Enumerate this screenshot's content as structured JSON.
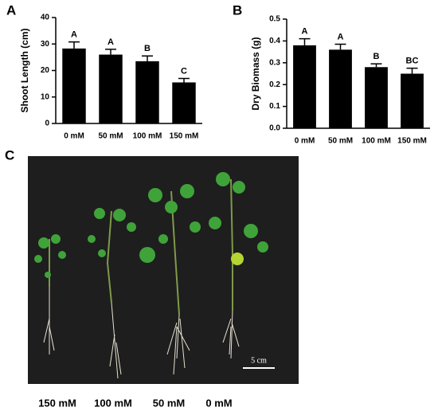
{
  "chart_data": [
    {
      "type": "bar",
      "panel": "A",
      "ylabel": "Shoot Length (cm)",
      "categories": [
        "0 mM",
        "50 mM",
        "100 mM",
        "150 mM"
      ],
      "values": [
        28.3,
        26,
        23.5,
        15.5
      ],
      "errors": [
        2.5,
        2,
        2,
        1.5
      ],
      "letters": [
        "A",
        "A",
        "B",
        "C"
      ],
      "color": "#000000",
      "ylim": [
        0,
        40
      ],
      "yticks": [
        0,
        10,
        20,
        30,
        40
      ]
    },
    {
      "type": "bar",
      "panel": "B",
      "ylabel": "Dry Biomass (g)",
      "categories": [
        "0 mM",
        "50 mM",
        "100 mM",
        "150 mM"
      ],
      "values": [
        0.38,
        0.36,
        0.28,
        0.25
      ],
      "errors": [
        0.03,
        0.025,
        0.015,
        0.025
      ],
      "letters": [
        "A",
        "A",
        "B",
        "BC"
      ],
      "color": "#000000",
      "ylim": [
        0,
        0.5
      ],
      "yticks": [
        {
          "value": 0,
          "label": "0.0"
        },
        0.1,
        0.2,
        0.3,
        0.4,
        0.5
      ]
    }
  ],
  "photo": {
    "panel": "C",
    "labels": [
      "150 mM",
      "100 mM",
      "50 mM",
      "0 mM"
    ],
    "scale_bar": "5 cm"
  }
}
